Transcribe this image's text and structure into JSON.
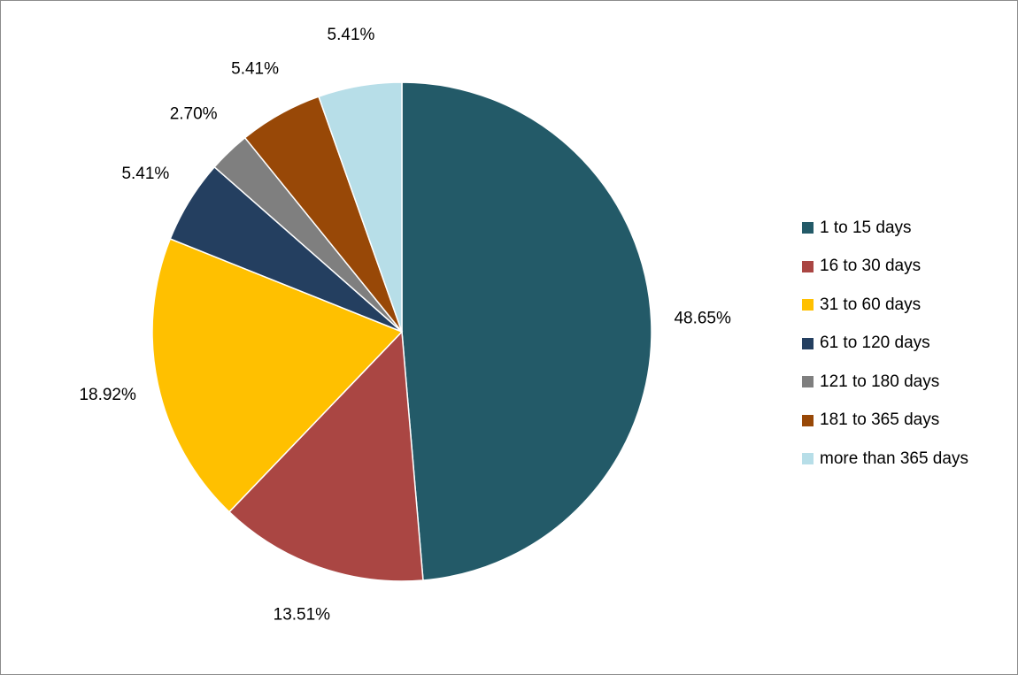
{
  "chart_data": {
    "type": "pie",
    "title": "",
    "categories": [
      "1 to 15 days",
      "16 to 30 days",
      "31 to 60 days",
      "61 to 120 days",
      "121 to 180 days",
      "181 to 365 days",
      "more than 365 days"
    ],
    "values": [
      48.65,
      13.51,
      18.92,
      5.41,
      2.7,
      5.41,
      5.41
    ],
    "data_labels": [
      "48.65%",
      "13.51%",
      "18.92%",
      "5.41%",
      "2.70%",
      "5.41%",
      "5.41%"
    ],
    "colors": [
      "#235A68",
      "#AA4643",
      "#FFC000",
      "#243F60",
      "#7F7F7F",
      "#984807",
      "#B7DEE8"
    ],
    "legend_position": "right",
    "start_angle": "12 o'clock",
    "direction": "clockwise"
  }
}
